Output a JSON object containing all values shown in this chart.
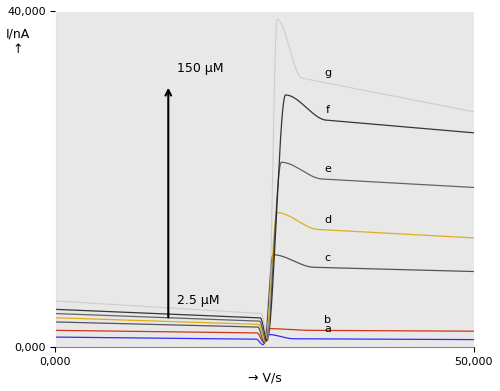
{
  "xlim": [
    0,
    50000
  ],
  "ylim": [
    0,
    40000
  ],
  "xlabel": "→ V/s",
  "ylabel": "I/nA\n↑",
  "xtick_labels": [
    "0,000",
    "50,000"
  ],
  "ytick_labels": [
    "0,000",
    "40,000"
  ],
  "bg_color": "#e8e8e8",
  "label_150": "150 μM",
  "label_25": "2.5 μM",
  "curves": [
    {
      "label": "a",
      "color": "#1a1aff",
      "baseline": 1200,
      "baseline_end": 800,
      "dip_x": 24800,
      "dip_y": 300,
      "peak_x": 25500,
      "peak_y": 1500,
      "plateau": 1000,
      "plateau_end": 900,
      "decay_long": true
    },
    {
      "label": "b",
      "color": "#cc2200",
      "baseline": 2000,
      "baseline_end": 1500,
      "dip_x": 24900,
      "dip_y": 600,
      "peak_x": 25600,
      "peak_y": 2200,
      "plateau": 2000,
      "plateau_end": 1900,
      "decay_long": false
    },
    {
      "label": "c",
      "color": "#444444",
      "baseline": 3000,
      "baseline_end": 2000,
      "dip_x": 25000,
      "dip_y": 500,
      "peak_x": 26000,
      "peak_y": 11000,
      "plateau": 9500,
      "plateau_end": 9000,
      "decay_long": false
    },
    {
      "label": "d",
      "color": "#ddaa00",
      "baseline": 3500,
      "baseline_end": 2200,
      "dip_x": 25100,
      "dip_y": 600,
      "peak_x": 26500,
      "peak_y": 16000,
      "plateau": 14000,
      "plateau_end": 13000,
      "decay_long": false
    },
    {
      "label": "e",
      "color": "#555555",
      "baseline": 4000,
      "baseline_end": 2500,
      "dip_x": 25200,
      "dip_y": 700,
      "peak_x": 27000,
      "peak_y": 22000,
      "plateau": 20000,
      "plateau_end": 19000,
      "decay_long": false
    },
    {
      "label": "f",
      "color": "#222222",
      "baseline": 4500,
      "baseline_end": 2800,
      "dip_x": 25300,
      "dip_y": 800,
      "peak_x": 27500,
      "peak_y": 30000,
      "plateau": 27000,
      "plateau_end": 25500,
      "decay_long": false
    },
    {
      "label": "g",
      "color": "#bbbbbb",
      "baseline": 5500,
      "baseline_end": 3000,
      "dip_x": 25400,
      "dip_y": 900,
      "peak_x": 26500,
      "peak_y": 39000,
      "plateau": 32000,
      "plateau_end": 28000,
      "decay_long": true
    }
  ]
}
